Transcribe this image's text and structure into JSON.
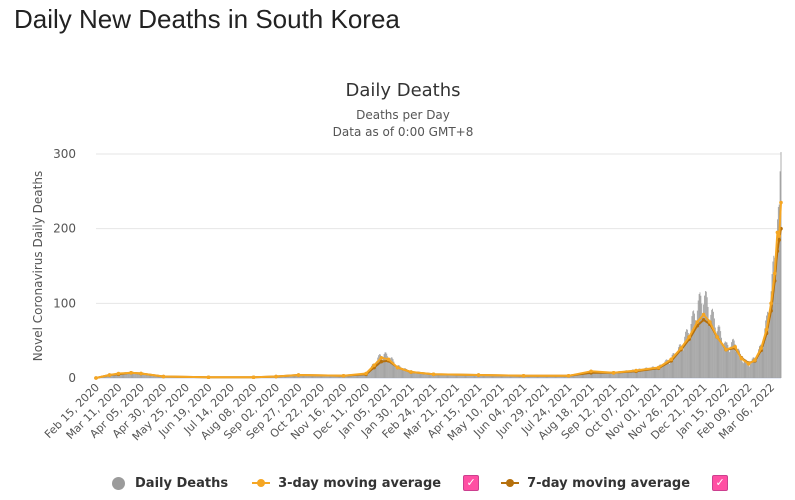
{
  "page": {
    "title": "Daily New Deaths in South Korea"
  },
  "chart_data": {
    "type": "bar",
    "title": "Daily Deaths",
    "subtitle": "Deaths per Day",
    "subtitle2": "Data as of 0:00 GMT+8",
    "xlabel": "",
    "ylabel": "Novel Coronavirus Daily Deaths",
    "ylim": [
      0,
      300
    ],
    "yticks": [
      0,
      100,
      200,
      300
    ],
    "grid": true,
    "legend_position": "bottom",
    "xlim": [
      "2020-02-15",
      "2022-03-17"
    ],
    "xtick_labels": [
      "Feb 15, 2020",
      "Mar 11, 2020",
      "Apr 05, 2020",
      "Apr 30, 2020",
      "May 25, 2020",
      "Jun 19, 2020",
      "Jul 14, 2020",
      "Aug 08, 2020",
      "Sep 02, 2020",
      "Sep 27, 2020",
      "Oct 22, 2020",
      "Nov 16, 2020",
      "Dec 11, 2020",
      "Jan 05, 2021",
      "Jan 30, 2021",
      "Feb 24, 2021",
      "Mar 21, 2021",
      "Apr 15, 2021",
      "May 10, 2021",
      "Jun 04, 2021",
      "Jun 29, 2021",
      "Jul 24, 2021",
      "Aug 18, 2021",
      "Sep 12, 2021",
      "Oct 07, 2021",
      "Nov 01, 2021",
      "Nov 26, 2021",
      "Dec 21, 2021",
      "Jan 15, 2022",
      "Feb 09, 2022",
      "Mar 06, 2022"
    ],
    "series": [
      {
        "name": "Daily Deaths",
        "kind": "bar",
        "color": "#9b9b9b",
        "x": [
          "2020-02-15",
          "2020-03-01",
          "2020-03-11",
          "2020-03-25",
          "2020-04-05",
          "2020-04-30",
          "2020-06-19",
          "2020-08-08",
          "2020-09-02",
          "2020-09-27",
          "2020-11-16",
          "2020-12-11",
          "2020-12-20",
          "2020-12-28",
          "2021-01-05",
          "2021-01-15",
          "2021-01-30",
          "2021-02-24",
          "2021-04-15",
          "2021-06-04",
          "2021-07-24",
          "2021-08-18",
          "2021-09-12",
          "2021-10-07",
          "2021-11-01",
          "2021-11-15",
          "2021-11-26",
          "2021-12-05",
          "2021-12-14",
          "2021-12-21",
          "2021-12-28",
          "2022-01-05",
          "2022-01-15",
          "2022-01-25",
          "2022-02-01",
          "2022-02-09",
          "2022-02-16",
          "2022-02-23",
          "2022-03-01",
          "2022-03-06",
          "2022-03-10",
          "2022-03-13",
          "2022-03-15",
          "2022-03-17"
        ],
        "values": [
          0,
          4,
          6,
          7,
          6,
          2,
          1,
          1,
          2,
          4,
          3,
          6,
          18,
          30,
          28,
          15,
          8,
          5,
          4,
          3,
          3,
          8,
          7,
          10,
          14,
          25,
          40,
          62,
          90,
          105,
          85,
          65,
          40,
          45,
          25,
          18,
          25,
          40,
          70,
          110,
          150,
          213,
          195,
          270
        ]
      },
      {
        "name": "3-day moving average",
        "kind": "line",
        "color": "#f5a623",
        "x": [
          "2020-02-15",
          "2020-03-01",
          "2020-03-11",
          "2020-03-25",
          "2020-04-05",
          "2020-04-30",
          "2020-06-19",
          "2020-08-08",
          "2020-09-02",
          "2020-09-27",
          "2020-11-16",
          "2020-12-11",
          "2020-12-20",
          "2020-12-28",
          "2021-01-05",
          "2021-01-15",
          "2021-01-30",
          "2021-02-24",
          "2021-04-15",
          "2021-06-04",
          "2021-07-24",
          "2021-08-18",
          "2021-09-12",
          "2021-10-07",
          "2021-11-01",
          "2021-11-15",
          "2021-11-26",
          "2021-12-05",
          "2021-12-14",
          "2021-12-21",
          "2021-12-28",
          "2022-01-05",
          "2022-01-15",
          "2022-01-25",
          "2022-02-01",
          "2022-02-09",
          "2022-02-16",
          "2022-02-23",
          "2022-03-01",
          "2022-03-06",
          "2022-03-10",
          "2022-03-13",
          "2022-03-15",
          "2022-03-17"
        ],
        "values": [
          0,
          4,
          6,
          7,
          6,
          2,
          1,
          1,
          2,
          4,
          3,
          6,
          17,
          27,
          25,
          14,
          8,
          5,
          4,
          3,
          3,
          9,
          7,
          10,
          14,
          25,
          40,
          55,
          75,
          85,
          75,
          55,
          38,
          42,
          26,
          19,
          24,
          40,
          65,
          100,
          140,
          195,
          190,
          235
        ]
      },
      {
        "name": "7-day moving average",
        "kind": "line",
        "color": "#b5700d",
        "x": [
          "2020-02-15",
          "2020-03-01",
          "2020-03-11",
          "2020-03-25",
          "2020-04-05",
          "2020-04-30",
          "2020-06-19",
          "2020-08-08",
          "2020-09-02",
          "2020-09-27",
          "2020-11-16",
          "2020-12-11",
          "2020-12-20",
          "2020-12-28",
          "2021-01-05",
          "2021-01-15",
          "2021-01-30",
          "2021-02-24",
          "2021-04-15",
          "2021-06-04",
          "2021-07-24",
          "2021-08-18",
          "2021-09-12",
          "2021-10-07",
          "2021-11-01",
          "2021-11-15",
          "2021-11-26",
          "2021-12-05",
          "2021-12-14",
          "2021-12-21",
          "2021-12-28",
          "2022-01-05",
          "2022-01-15",
          "2022-01-25",
          "2022-02-01",
          "2022-02-09",
          "2022-02-16",
          "2022-02-23",
          "2022-03-01",
          "2022-03-06",
          "2022-03-10",
          "2022-03-13",
          "2022-03-15",
          "2022-03-17"
        ],
        "values": [
          0,
          4,
          5,
          7,
          6,
          2,
          1,
          1,
          2,
          4,
          3,
          5,
          14,
          22,
          23,
          14,
          8,
          5,
          4,
          3,
          3,
          7,
          7,
          9,
          13,
          23,
          38,
          52,
          70,
          78,
          72,
          55,
          38,
          40,
          27,
          20,
          23,
          37,
          60,
          90,
          130,
          170,
          185,
          200
        ]
      }
    ]
  },
  "legend": {
    "items": [
      {
        "label": "Daily Deaths"
      },
      {
        "label": "3-day moving average",
        "checked": "✓"
      },
      {
        "label": "7-day moving average",
        "checked": "✓"
      }
    ]
  }
}
